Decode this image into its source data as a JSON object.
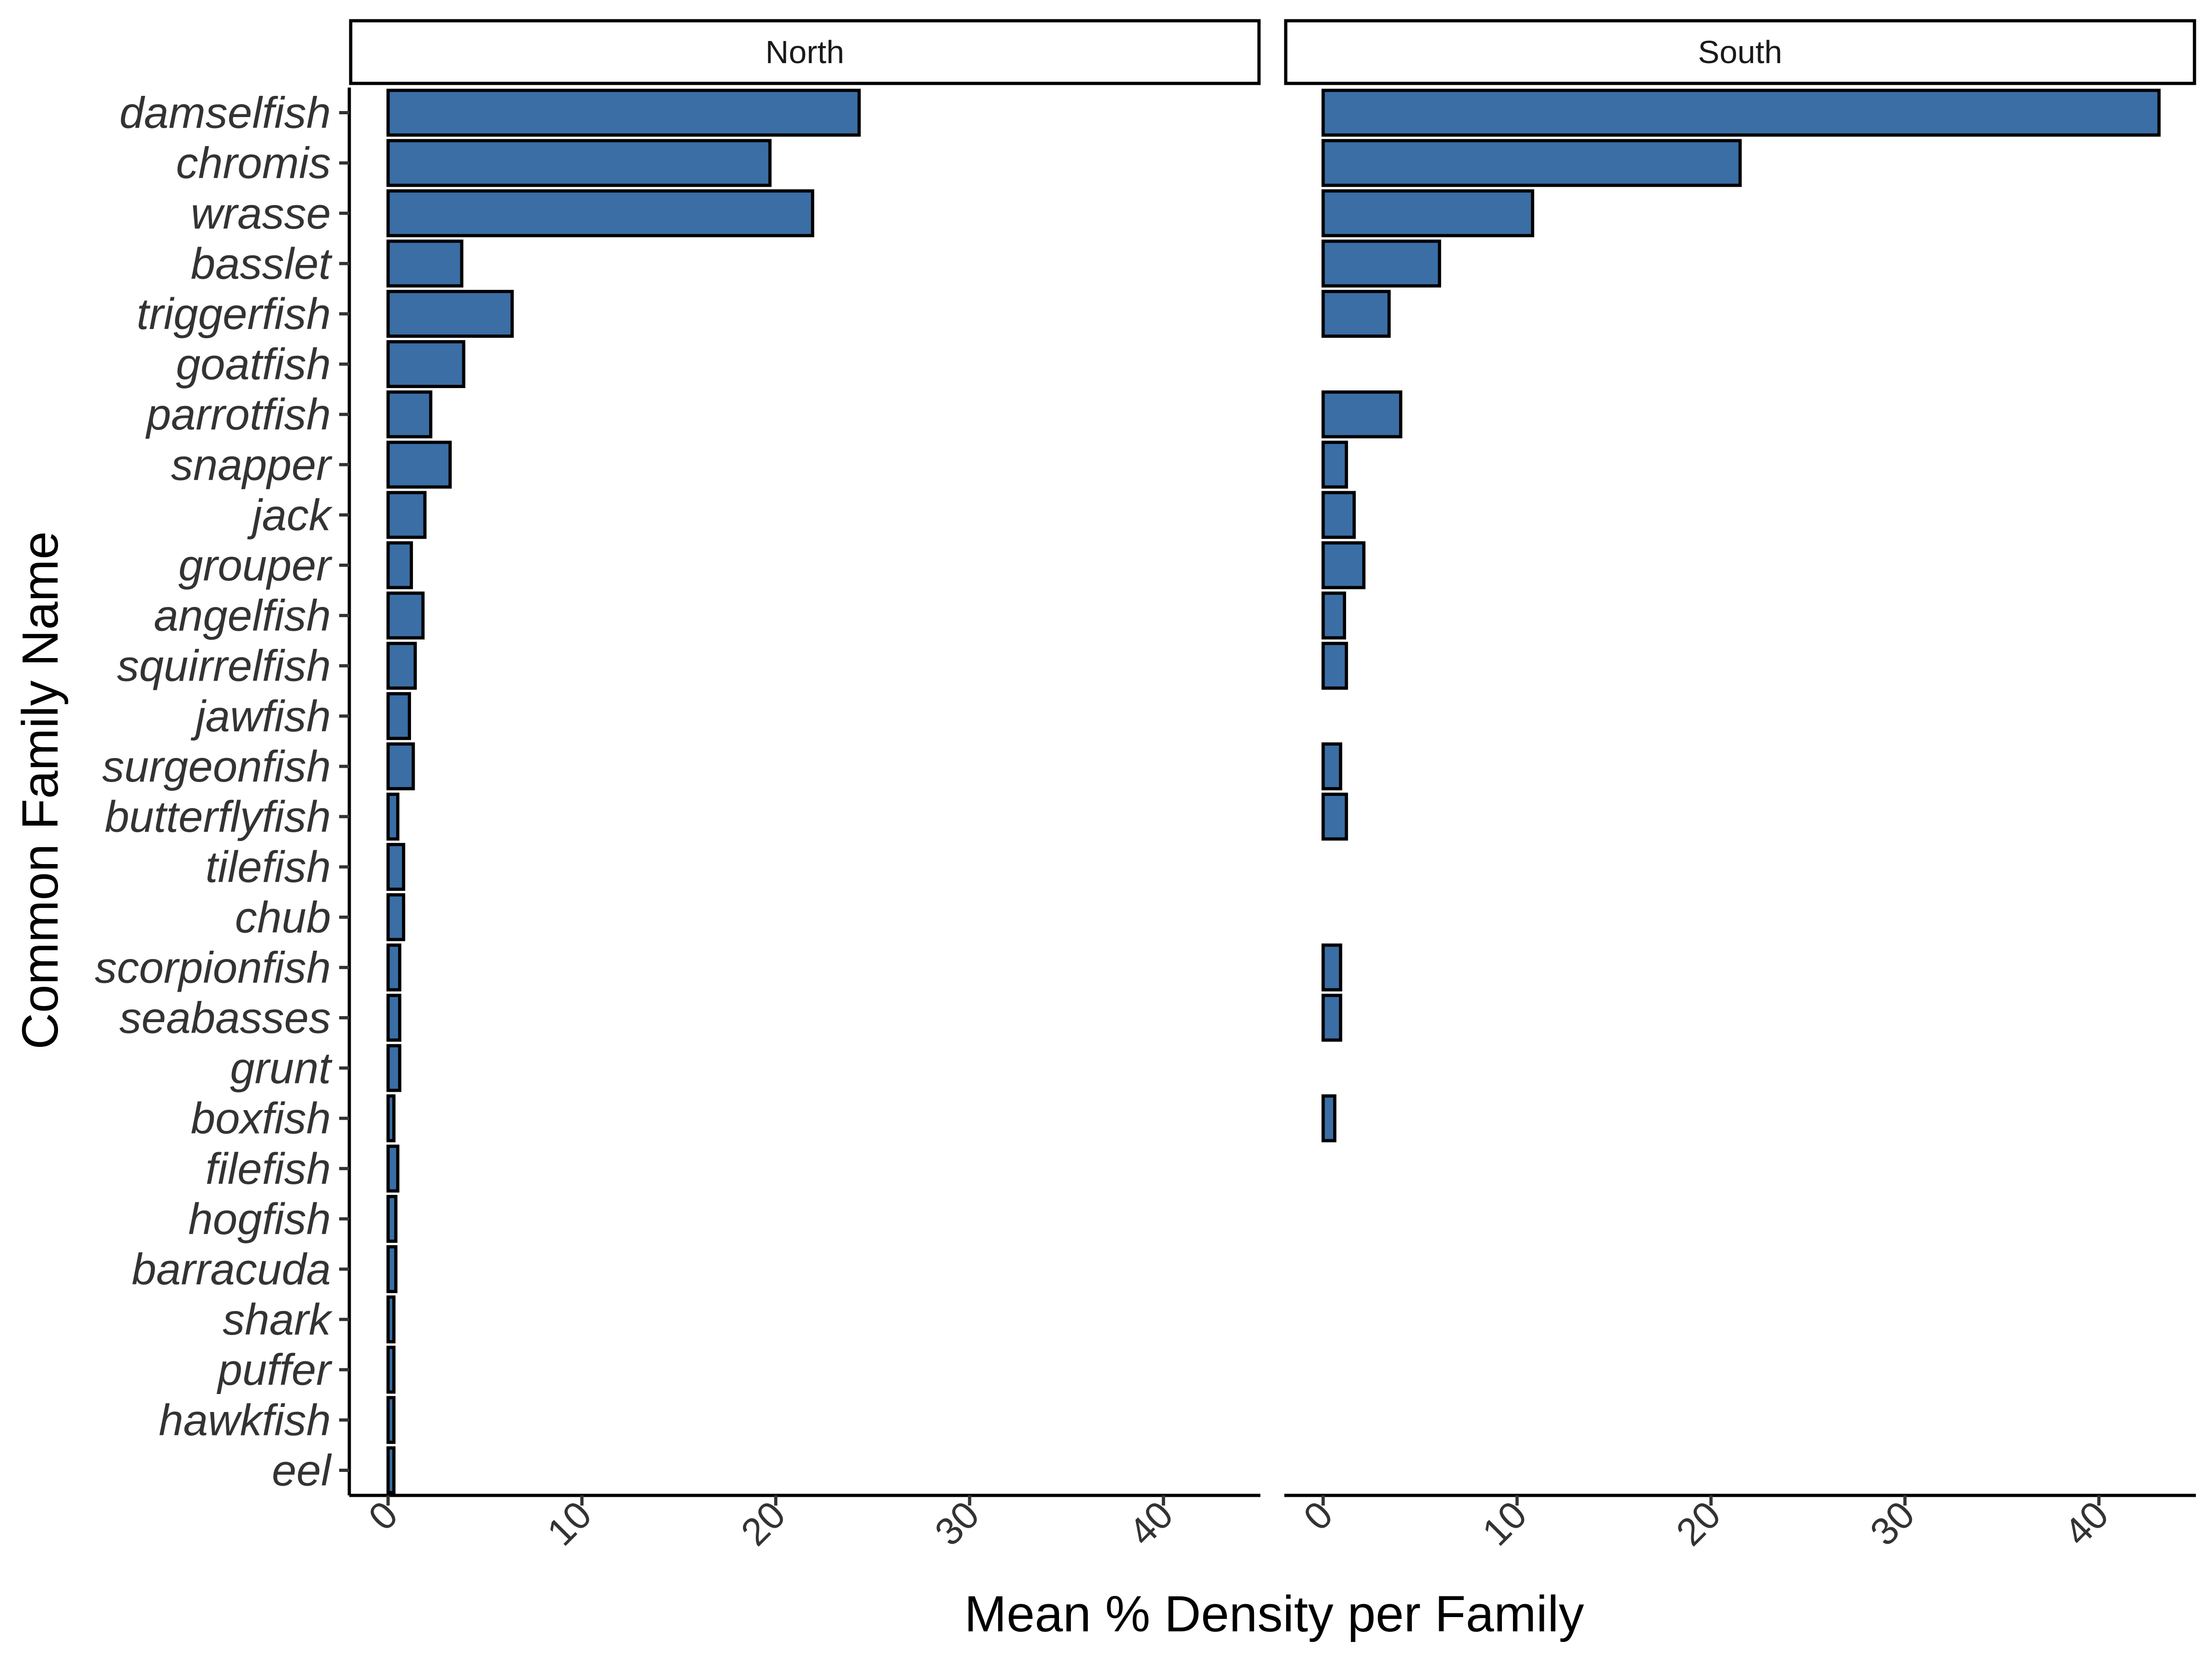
{
  "chart_data": {
    "type": "bar",
    "orientation": "horizontal",
    "xlabel": "Mean % Density per Family",
    "ylabel": "Common Family Name",
    "xlim": [
      -2,
      45
    ],
    "x_ticks": [
      "0",
      "10",
      "20",
      "30",
      "40"
    ],
    "x_tick_values": [
      0,
      10,
      20,
      30,
      40
    ],
    "grid": false,
    "bar_color": "#3A6EA5",
    "bar_edge_color": "#000000",
    "categories": [
      "damselfish",
      "chromis",
      "wrasse",
      "basslet",
      "triggerfish",
      "goatfish",
      "parrotfish",
      "snapper",
      "jack",
      "grouper",
      "angelfish",
      "squirrelfish",
      "jawfish",
      "surgeonfish",
      "butterflyfish",
      "tilefish",
      "chub",
      "scorpionfish",
      "seabasses",
      "grunt",
      "boxfish",
      "filefish",
      "hogfish",
      "barracuda",
      "shark",
      "puffer",
      "hawkfish",
      "eel"
    ],
    "panels": [
      {
        "name": "North",
        "values": [
          24.3,
          19.7,
          21.9,
          3.8,
          6.4,
          3.9,
          2.2,
          3.2,
          1.9,
          1.2,
          1.8,
          1.4,
          1.1,
          1.3,
          0.5,
          0.8,
          0.8,
          0.6,
          0.6,
          0.6,
          0.3,
          0.5,
          0.4,
          0.4,
          0.3,
          0.3,
          0.3,
          0.3
        ]
      },
      {
        "name": "South",
        "values": [
          43.1,
          21.5,
          10.8,
          6.0,
          3.4,
          null,
          4.0,
          1.2,
          1.6,
          2.1,
          1.1,
          1.2,
          null,
          0.9,
          1.2,
          null,
          null,
          0.9,
          0.9,
          null,
          0.6,
          null,
          null,
          null,
          null,
          null,
          null,
          null
        ]
      }
    ]
  }
}
